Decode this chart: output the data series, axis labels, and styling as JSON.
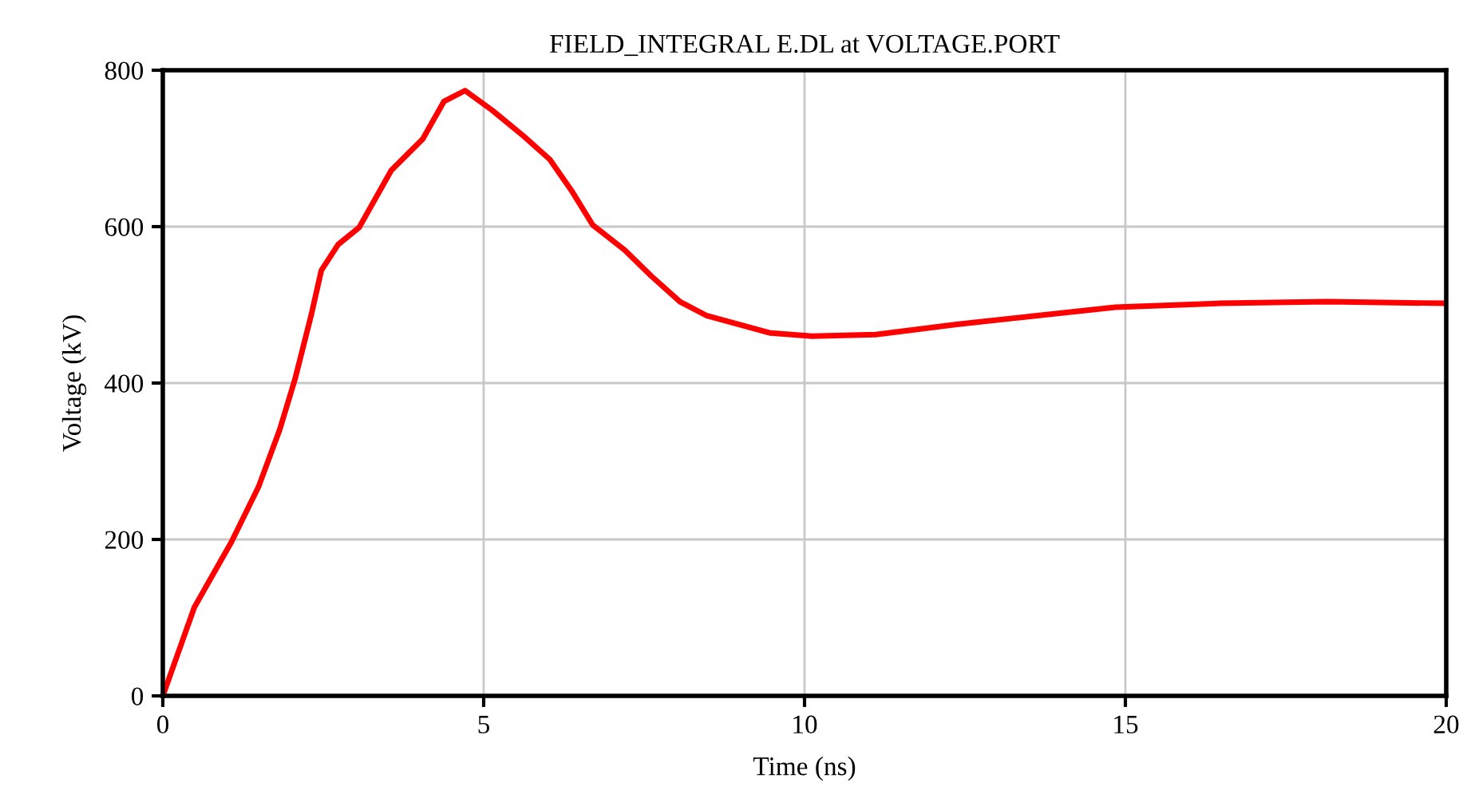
{
  "chart_data": {
    "type": "line",
    "title": "FIELD_INTEGRAL E.DL at VOLTAGE.PORT",
    "xlabel": "Time (ns)",
    "ylabel": "Voltage (kV)",
    "series": [
      {
        "color": "#ff0000",
        "x": [
          0,
          0.49,
          1.07,
          1.49,
          1.82,
          2.06,
          2.31,
          2.47,
          2.73,
          3.06,
          3.56,
          4.05,
          4.38,
          4.71,
          5.13,
          5.62,
          6.03,
          6.37,
          6.7,
          7.2,
          7.61,
          8.06,
          8.48,
          9.47,
          10.12,
          11.11,
          12.37,
          13.6,
          14.84,
          16.49,
          18.15,
          19.93
        ],
        "values": [
          0,
          113,
          197,
          267,
          340,
          405,
          486,
          544,
          577,
          599,
          672,
          712,
          760,
          774,
          749,
          716,
          686,
          646,
          602,
          570,
          537,
          504,
          486,
          464,
          460,
          462,
          475,
          486,
          497,
          502,
          504,
          502
        ]
      }
    ],
    "xlim": [
      0,
      20
    ],
    "ylim": [
      0,
      800
    ],
    "xticks": [
      0,
      5,
      10,
      15,
      20
    ],
    "yticks": [
      0,
      200,
      400,
      600,
      800
    ],
    "grid": true,
    "marker": "none",
    "line_style": "solid"
  }
}
